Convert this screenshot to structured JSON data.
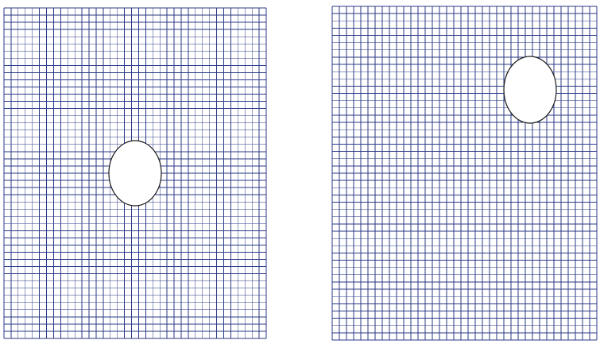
{
  "style": {
    "grid_color": "#2b3a86",
    "hole_stroke": "#1a1a1a",
    "hole_fill": "#ffffff",
    "background": "#ffffff"
  },
  "panels": [
    {
      "name": "left-grid-panel",
      "grid_columns": 37,
      "grid_rows": 46,
      "hole": {
        "shape": "ellipse",
        "position": "centered"
      }
    },
    {
      "name": "right-grid-panel",
      "grid_columns": 37,
      "grid_rows": 46,
      "hole": {
        "shape": "ellipse",
        "position": "upper-right"
      }
    }
  ]
}
